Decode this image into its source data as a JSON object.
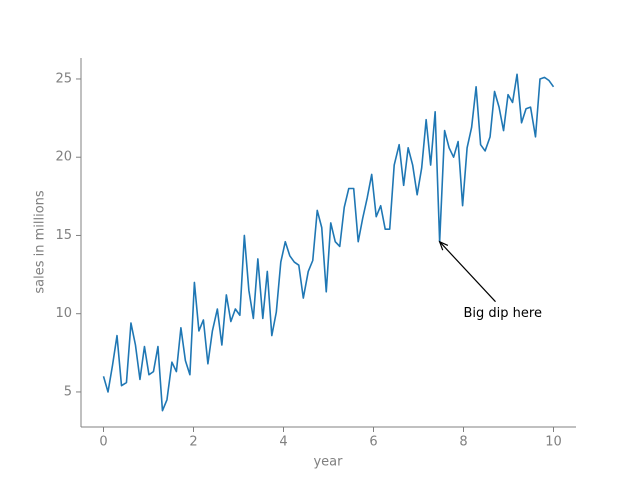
{
  "chart_data": {
    "type": "line",
    "xlabel": "year",
    "ylabel": "sales in millions",
    "x": [
      0,
      0.1,
      0.2,
      0.3,
      0.4,
      0.51,
      0.61,
      0.71,
      0.81,
      0.91,
      1.01,
      1.11,
      1.21,
      1.31,
      1.41,
      1.52,
      1.62,
      1.72,
      1.82,
      1.92,
      2.02,
      2.12,
      2.22,
      2.32,
      2.42,
      2.53,
      2.63,
      2.73,
      2.83,
      2.93,
      3.03,
      3.13,
      3.23,
      3.33,
      3.43,
      3.54,
      3.64,
      3.74,
      3.84,
      3.94,
      4.04,
      4.14,
      4.24,
      4.34,
      4.44,
      4.55,
      4.65,
      4.75,
      4.85,
      4.95,
      5.05,
      5.15,
      5.25,
      5.35,
      5.45,
      5.56,
      5.66,
      5.76,
      5.86,
      5.96,
      6.06,
      6.16,
      6.26,
      6.36,
      6.46,
      6.57,
      6.67,
      6.77,
      6.87,
      6.97,
      7.07,
      7.17,
      7.27,
      7.37,
      7.47,
      7.58,
      7.68,
      7.78,
      7.88,
      7.98,
      8.08,
      8.18,
      8.28,
      8.38,
      8.48,
      8.59,
      8.69,
      8.79,
      8.89,
      8.99,
      9.09,
      9.19,
      9.29,
      9.39,
      9.49,
      9.6,
      9.7,
      9.8,
      9.9,
      10
    ],
    "series": [
      {
        "color": "#1f77b4",
        "values": [
          6.0,
          5.0,
          6.7,
          8.6,
          5.4,
          5.6,
          9.4,
          8.0,
          5.8,
          7.9,
          6.1,
          6.3,
          7.9,
          3.8,
          4.5,
          6.9,
          6.3,
          9.1,
          7.0,
          6.1,
          12.0,
          8.9,
          9.6,
          6.8,
          8.9,
          10.3,
          8.0,
          11.2,
          9.5,
          10.3,
          9.9,
          15.0,
          11.5,
          9.7,
          13.5,
          9.7,
          12.7,
          8.6,
          10.1,
          13.3,
          14.6,
          13.7,
          13.3,
          13.1,
          11.0,
          12.7,
          13.4,
          16.6,
          15.5,
          11.4,
          15.8,
          14.6,
          14.3,
          16.8,
          18.0,
          18.0,
          14.6,
          16.1,
          17.4,
          18.9,
          16.2,
          16.9,
          15.4,
          15.4,
          19.5,
          20.8,
          18.2,
          20.6,
          19.5,
          17.6,
          19.3,
          22.4,
          19.5,
          22.9,
          14.6,
          21.7,
          20.6,
          20.0,
          21.0,
          16.9,
          20.6,
          21.9,
          24.5,
          20.8,
          20.4,
          21.3,
          24.2,
          23.2,
          21.7,
          24.0,
          23.5,
          25.3,
          22.2,
          23.1,
          23.2,
          21.3,
          25.0,
          25.1,
          24.9,
          24.5
        ]
      }
    ],
    "xlim": [
      -0.5,
      10.5
    ],
    "xticks": [
      0,
      2,
      4,
      6,
      8,
      10
    ],
    "ylim": [
      2.76,
      26.34
    ],
    "yticks": [
      5,
      10,
      15,
      20,
      25
    ],
    "grid": false,
    "annotation": {
      "text": "Big dip here",
      "xy": [
        7.47,
        14.6
      ],
      "xytext": [
        8,
        10
      ]
    }
  }
}
